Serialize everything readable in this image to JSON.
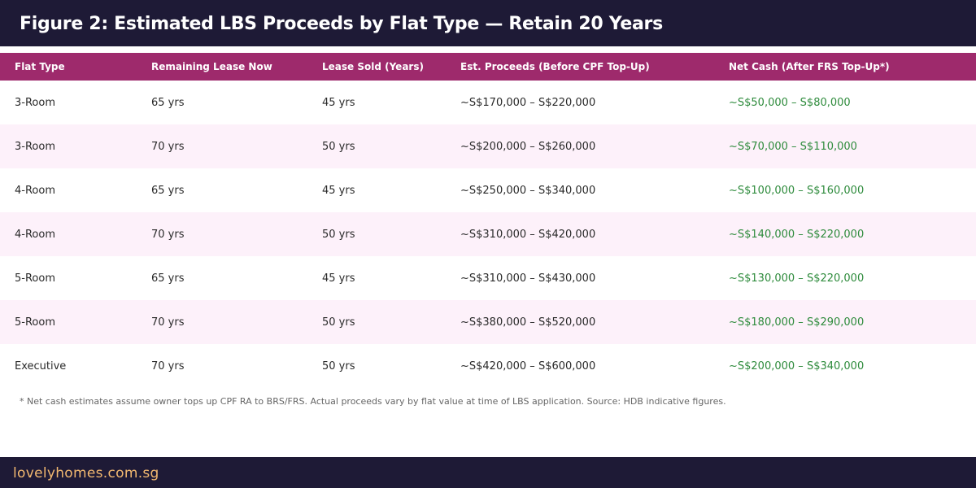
{
  "title": "Figure 2: Estimated LBS Proceeds by Flat Type — Retain 20 Years",
  "table": {
    "headers": [
      "Flat Type",
      "Remaining Lease Now",
      "Lease Sold (Years)",
      "Est. Proceeds (Before CPF Top-Up)",
      "Net Cash (After FRS Top-Up*)"
    ],
    "rows": [
      [
        "3-Room",
        "65 yrs",
        "45 yrs",
        "~S$170,000 – S$220,000",
        "~S$50,000 – S$80,000"
      ],
      [
        "3-Room",
        "70 yrs",
        "50 yrs",
        "~S$200,000 – S$260,000",
        "~S$70,000 – S$110,000"
      ],
      [
        "4-Room",
        "65 yrs",
        "45 yrs",
        "~S$250,000 – S$340,000",
        "~S$100,000 – S$160,000"
      ],
      [
        "4-Room",
        "70 yrs",
        "50 yrs",
        "~S$310,000 – S$420,000",
        "~S$140,000 – S$220,000"
      ],
      [
        "5-Room",
        "65 yrs",
        "45 yrs",
        "~S$310,000 – S$430,000",
        "~S$130,000 – S$220,000"
      ],
      [
        "5-Room",
        "70 yrs",
        "50 yrs",
        "~S$380,000 – S$520,000",
        "~S$180,000 – S$290,000"
      ],
      [
        "Executive",
        "70 yrs",
        "50 yrs",
        "~S$420,000 – S$600,000",
        "~S$200,000 – S$340,000"
      ]
    ]
  },
  "footnote": "* Net cash estimates assume owner tops up CPF RA to BRS/FRS. Actual proceeds vary by flat value at time of LBS application. Source: HDB indicative figures.",
  "footer": "lovelyhomes.com.sg",
  "colors": {
    "title_bg": "#1e1a36",
    "header_bg": "#9e2a6c",
    "alt_row_bg": "#fdf1fa",
    "net_cash_text": "#2e8b3c",
    "footer_text": "#f2b870"
  }
}
